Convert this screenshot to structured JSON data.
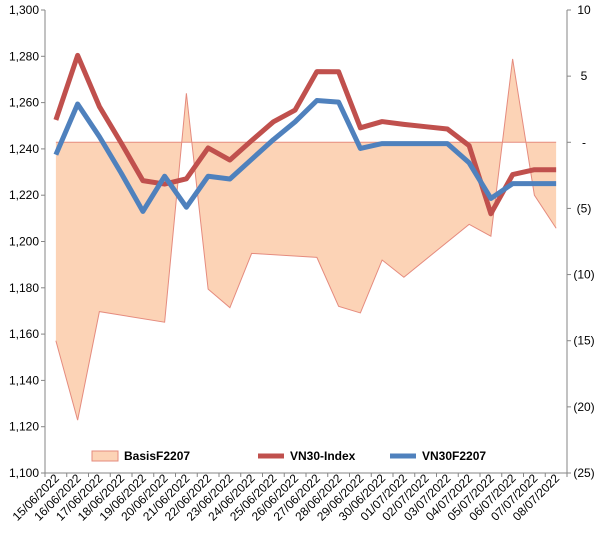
{
  "chart_data": {
    "type": "line",
    "title": "",
    "xlabel": "",
    "ylabel": "",
    "ylabel_right": "",
    "x": [
      "15/06/2022",
      "16/06/2022",
      "17/06/2022",
      "18/06/2022",
      "19/06/2022",
      "20/06/2022",
      "21/06/2022",
      "22/06/2022",
      "23/06/2022",
      "24/06/2022",
      "25/06/2022",
      "26/06/2022",
      "27/06/2022",
      "28/06/2022",
      "29/06/2022",
      "30/06/2022",
      "01/07/2022",
      "02/07/2022",
      "03/07/2022",
      "04/07/2022",
      "05/07/2022",
      "06/07/2022",
      "07/07/2022",
      "08/07/2022"
    ],
    "ylim": [
      1100,
      1300
    ],
    "yticks": [
      1100,
      1120,
      1140,
      1160,
      1180,
      1200,
      1220,
      1240,
      1260,
      1280,
      1300
    ],
    "ytick_labels": [
      "1,100",
      "1,120",
      "1,140",
      "1,160",
      "1,180",
      "1,200",
      "1,220",
      "1,240",
      "1,260",
      "1,280",
      "1,300"
    ],
    "ylim_right": [
      -25,
      10
    ],
    "yticks_right": [
      -25,
      -20,
      -15,
      -10,
      -5,
      0,
      5,
      10
    ],
    "ytick_labels_right": [
      "(25)",
      "(20)",
      "(15)",
      "(10)",
      "(5)",
      "-",
      "5",
      "10"
    ],
    "series": [
      {
        "name": "BasisF2207",
        "kind": "area",
        "axis": "right",
        "color": "#FCD3B6",
        "edge_color": "#E58B7E",
        "points": [
          [
            "15/06/2022",
            -15
          ],
          [
            "16/06/2022",
            -21
          ],
          [
            "17/06/2022",
            -12.8
          ],
          [
            "20/06/2022",
            -13.6
          ],
          [
            "20/06/2022",
            -13.6
          ],
          [
            "21/06/2022",
            3.7
          ],
          [
            "22/06/2022",
            -11.1
          ],
          [
            "23/06/2022",
            -12.5
          ],
          [
            "24/06/2022",
            -8.4
          ],
          [
            "27/06/2022",
            -8.7
          ],
          [
            "28/06/2022",
            -12.4
          ],
          [
            "29/06/2022",
            -12.9
          ],
          [
            "30/06/2022",
            -8.9
          ],
          [
            "01/07/2022",
            -10.2
          ],
          [
            "04/07/2022",
            -6.2
          ],
          [
            "05/07/2022",
            -7.1
          ],
          [
            "06/07/2022",
            6.3
          ],
          [
            "07/07/2022",
            -4.0
          ],
          [
            "08/07/2022",
            -6.5
          ]
        ]
      },
      {
        "name": "VN30-Index",
        "kind": "line",
        "axis": "left",
        "color": "#C0504D",
        "values": [
          1252.5,
          1280.4,
          1258.3,
          1242.6,
          1226.3,
          1224.8,
          1227.1,
          1240.4,
          1235.2,
          1243.6,
          1251.7,
          1256.8,
          1273.4,
          1273.3,
          1249.1,
          1251.8,
          1250.6,
          1249.6,
          1248.6,
          1241.4,
          1212.0,
          1228.9,
          1231.0,
          1231.0
        ]
      },
      {
        "name": "VN30F2207",
        "kind": "line",
        "axis": "left",
        "color": "#4F81BD",
        "values": [
          1237.5,
          1259.4,
          1245.3,
          1229.6,
          1213.0,
          1228.2,
          1214.8,
          1228.2,
          1227.0,
          1235.5,
          1244.0,
          1251.7,
          1260.9,
          1260.2,
          1240.2,
          1242.3,
          1242.3,
          1242.3,
          1242.3,
          1234.0,
          1218.6,
          1225.0,
          1225.0,
          1225.0
        ]
      }
    ],
    "legend": {
      "position": "bottom-inside",
      "entries": [
        "BasisF2207",
        "VN30-Index",
        "VN30F2207"
      ]
    },
    "grid": false
  }
}
